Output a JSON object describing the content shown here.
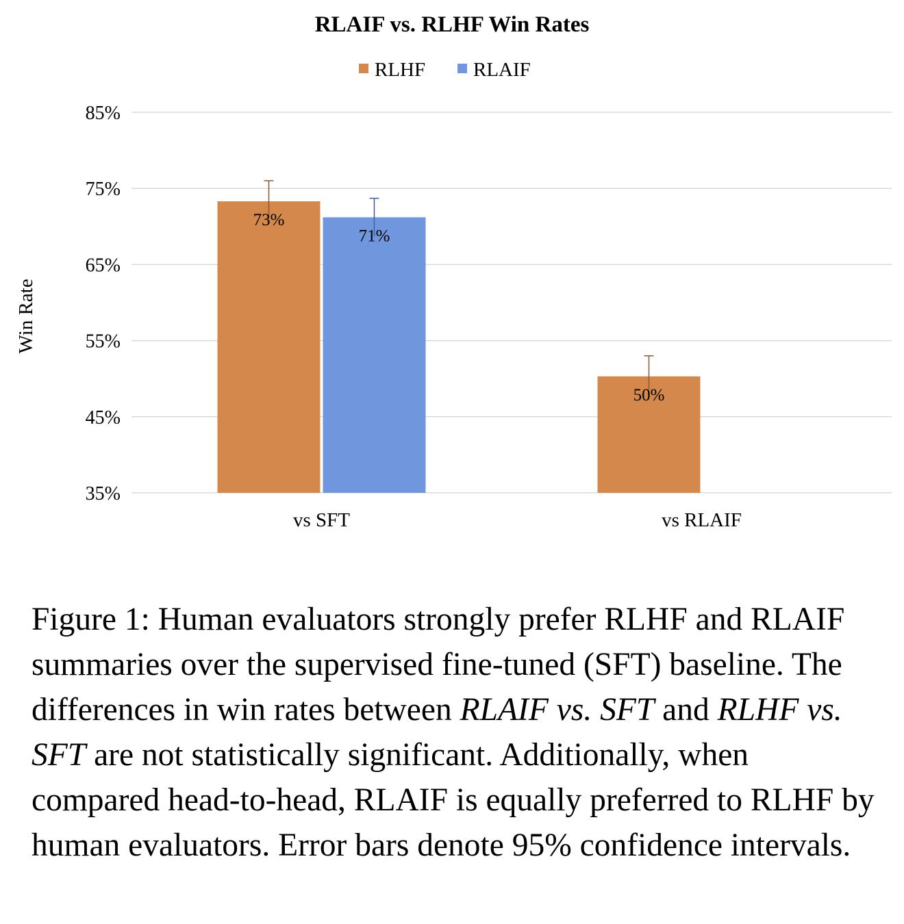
{
  "chart_data": {
    "type": "bar",
    "title": "RLAIF vs. RLHF Win Rates",
    "ylabel": "Win Rate",
    "xlabel": "",
    "categories": [
      "vs SFT",
      "vs RLAIF"
    ],
    "series": [
      {
        "name": "RLHF",
        "color": "#D4884C",
        "values": [
          73.3,
          50.3
        ],
        "labels": [
          "73%",
          "50%"
        ],
        "error_upper": [
          76.0,
          53.0
        ],
        "error_lower": [
          70.6,
          47.6
        ]
      },
      {
        "name": "RLAIF",
        "color": "#7096DD",
        "values": [
          71.2,
          null
        ],
        "labels": [
          "71%",
          null
        ],
        "error_upper": [
          73.7,
          null
        ],
        "error_lower": [
          68.7,
          null
        ]
      }
    ],
    "ylim": [
      35,
      85
    ],
    "yticks": [
      35,
      45,
      55,
      65,
      75,
      85
    ],
    "ytick_labels": [
      "35%",
      "45%",
      "55%",
      "65%",
      "75%",
      "85%"
    ],
    "grid": true,
    "legend_position": "top-center"
  },
  "caption": {
    "figure_label": "Figure 1:",
    "text_1": " Human evaluators strongly prefer RLHF and RLAIF summaries over the supervised fine-tuned (SFT) baseline. The differences in win rates between ",
    "em_1": "RLAIF vs. SFT",
    "text_2": " and ",
    "em_2": "RLHF vs. SFT",
    "text_3": " are not statistically significant. Additionally, when compared head-to-head, RLAIF is equally preferred to RLHF by human evaluators. Error bars denote 95% confidence intervals."
  }
}
